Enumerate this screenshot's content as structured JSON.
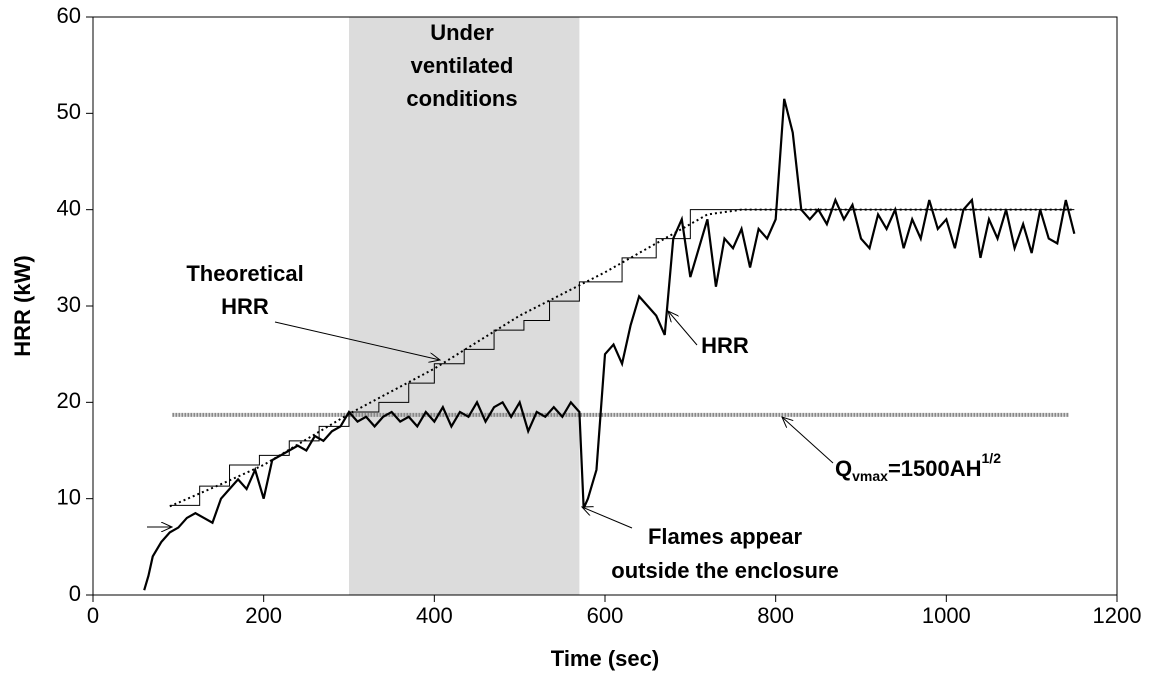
{
  "chart_data": {
    "type": "line",
    "xlabel": "Time (sec)",
    "ylabel": "HRR (kW)",
    "xlim": [
      0,
      1200
    ],
    "ylim": [
      0,
      60
    ],
    "xticks": [
      0,
      200,
      400,
      600,
      800,
      1000,
      1200
    ],
    "yticks": [
      0,
      10,
      20,
      30,
      40,
      50,
      60
    ],
    "grid": false,
    "shaded_region": {
      "x": [
        300,
        570
      ],
      "color": "#dcdcdc"
    },
    "series": [
      {
        "style": "hatched",
        "color": "#888888",
        "x": [
          93,
          1143
        ],
        "values": [
          18.7,
          18.7
        ]
      },
      {
        "style": "step",
        "color": "#000000",
        "x": [
          90,
          125,
          160,
          195,
          230,
          265,
          300,
          335,
          370,
          400,
          435,
          470,
          505,
          535,
          570,
          620,
          660,
          700,
          1150
        ],
        "values": [
          9.3,
          11.3,
          13.5,
          14.5,
          16,
          17.5,
          19,
          20,
          22,
          24,
          25.5,
          27.5,
          28.5,
          30.5,
          32.5,
          35,
          37,
          40,
          40
        ]
      },
      {
        "style": "dotted",
        "color": "#000000",
        "x": [
          90,
          150,
          200,
          300,
          400,
          500,
          600,
          680,
          720,
          760,
          1150
        ],
        "values": [
          9.2,
          11.5,
          13.5,
          18.8,
          23.5,
          29,
          33.5,
          37.5,
          39.5,
          40,
          40
        ]
      },
      {
        "style": "solid",
        "color": "#000000",
        "x": [
          60,
          65,
          70,
          80,
          90,
          100,
          110,
          120,
          130,
          140,
          150,
          160,
          170,
          180,
          190,
          200,
          210,
          220,
          230,
          240,
          250,
          260,
          270,
          280,
          290,
          300,
          310,
          320,
          330,
          340,
          350,
          360,
          370,
          380,
          390,
          400,
          410,
          420,
          430,
          440,
          450,
          460,
          470,
          480,
          490,
          500,
          510,
          520,
          530,
          540,
          550,
          560,
          570,
          575,
          580,
          590,
          600,
          610,
          620,
          630,
          640,
          650,
          660,
          670,
          680,
          690,
          700,
          710,
          720,
          730,
          740,
          750,
          760,
          770,
          780,
          790,
          800,
          810,
          820,
          830,
          840,
          850,
          860,
          870,
          880,
          890,
          900,
          910,
          920,
          930,
          940,
          950,
          960,
          970,
          980,
          990,
          1000,
          1010,
          1020,
          1030,
          1040,
          1050,
          1060,
          1070,
          1080,
          1090,
          1100,
          1110,
          1120,
          1130,
          1140,
          1150
        ],
        "values": [
          0.5,
          2,
          4,
          5.5,
          6.5,
          7,
          8,
          8.5,
          8,
          7.5,
          10,
          11,
          12,
          11,
          13,
          10,
          14,
          14.5,
          15,
          15.5,
          15,
          16.5,
          16,
          17,
          17.5,
          19,
          18,
          18.5,
          17.5,
          18.5,
          19,
          18,
          18.5,
          17.5,
          19,
          18,
          19.5,
          17.5,
          19,
          18.5,
          20,
          18,
          19.5,
          20,
          18.5,
          20,
          17,
          19,
          18.5,
          19.5,
          18.5,
          20,
          19,
          9,
          10,
          13,
          25,
          26,
          24,
          28,
          31,
          30,
          29,
          27,
          37,
          39,
          33,
          36,
          39,
          32,
          37,
          36,
          38,
          34,
          38,
          37,
          39,
          51.5,
          48,
          40,
          39,
          40,
          38.5,
          41,
          39,
          40.5,
          37,
          36,
          39.5,
          38,
          40,
          36,
          39,
          37,
          41,
          38,
          39,
          36,
          40,
          41,
          35,
          39,
          37,
          40,
          36,
          38.5,
          35.5,
          40,
          37,
          36.5,
          41,
          37.5
        ]
      }
    ],
    "annotations": [
      {
        "lines": [
          "Under",
          "ventilated",
          "conditions"
        ]
      },
      {
        "lines": [
          "Theoretical",
          "HRR"
        ]
      },
      {
        "lines": [
          "HRR"
        ]
      },
      {
        "parts": [
          "Q",
          "vmax",
          "=1500AH",
          "1/2"
        ]
      },
      {
        "lines": [
          "Flames appear",
          "outside the enclosure"
        ]
      }
    ]
  }
}
